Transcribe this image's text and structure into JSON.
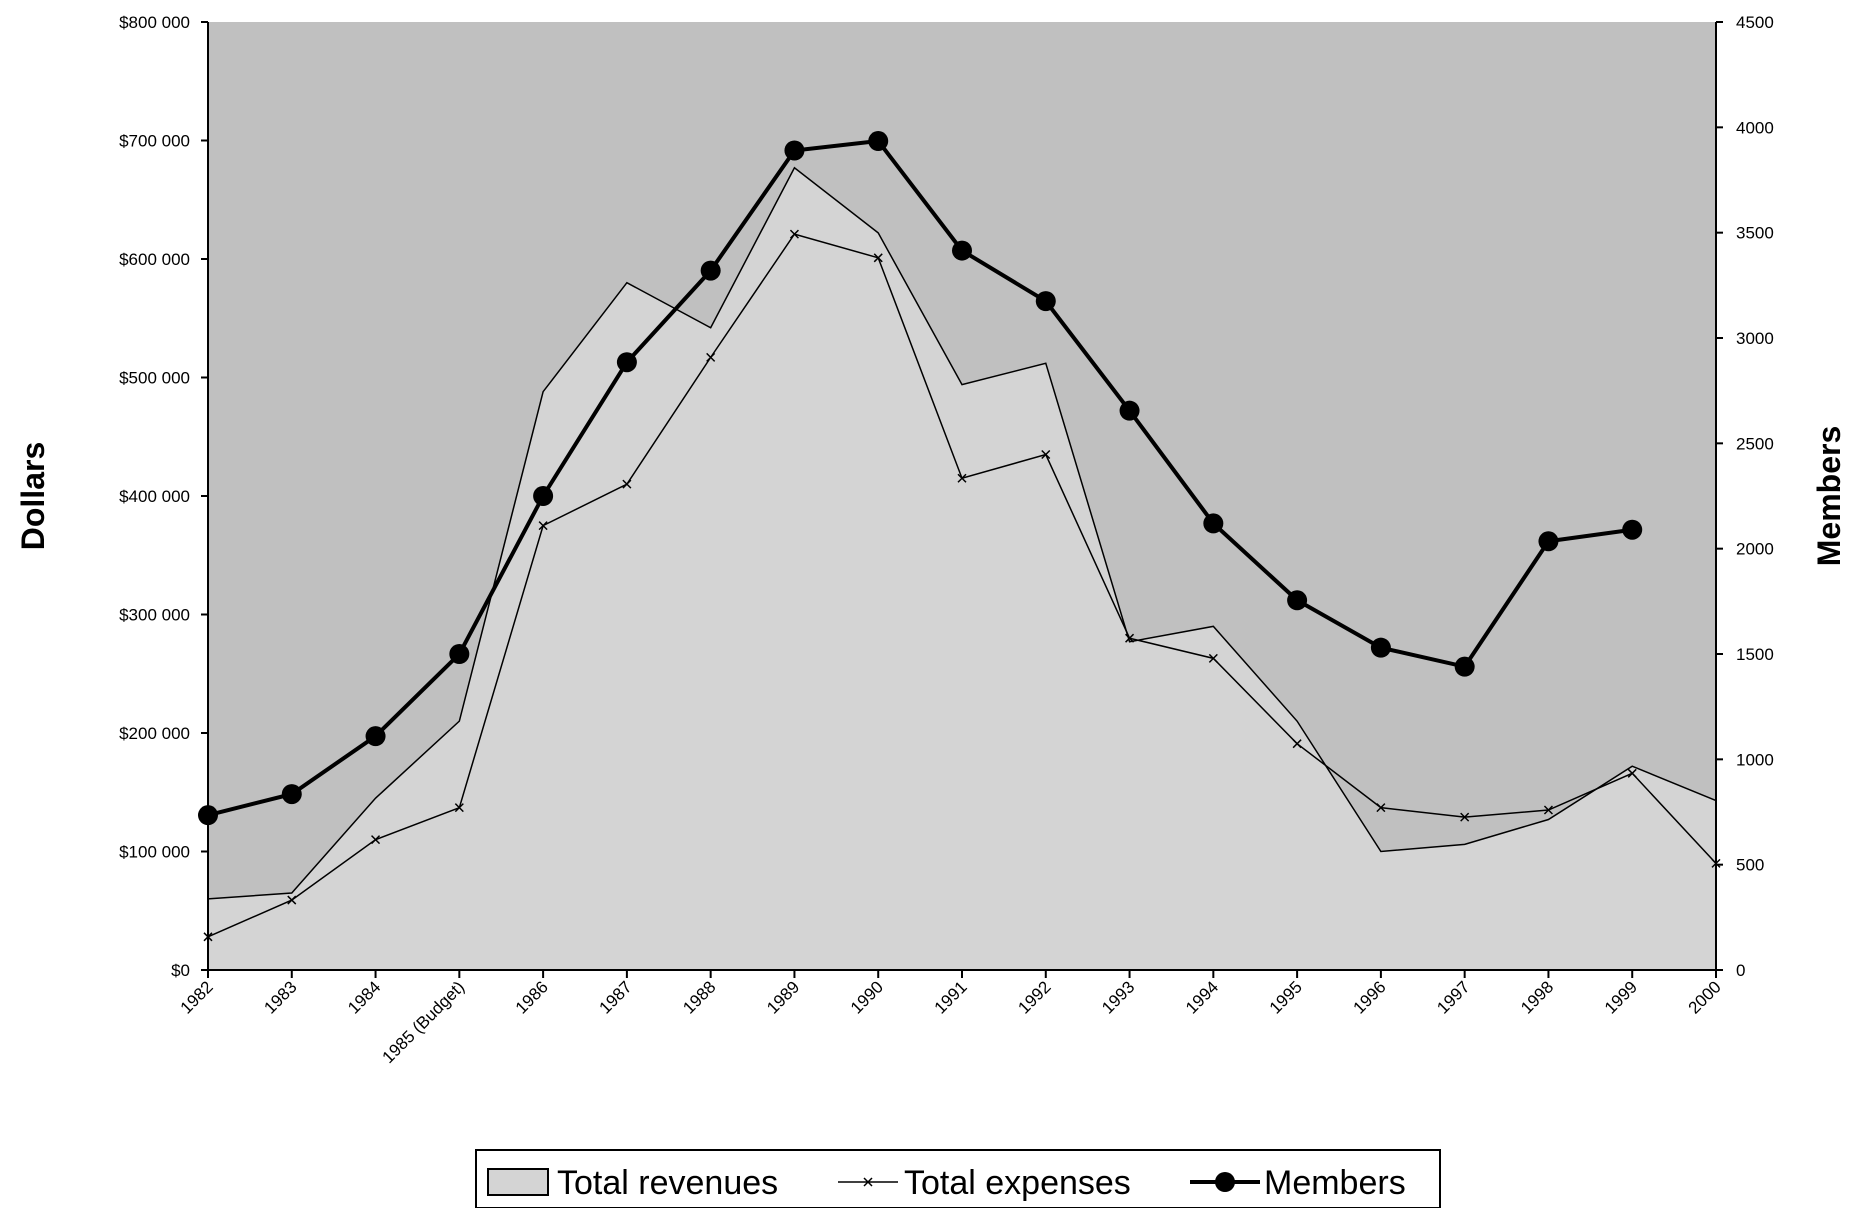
{
  "chart_data": {
    "type": "area",
    "title": "",
    "ylabel": "Dollars",
    "y2label": "Members",
    "categories": [
      "1982",
      "1983",
      "1984",
      "1985 (Budget)",
      "1986",
      "1987",
      "1988",
      "1989",
      "1990",
      "1991",
      "1992",
      "1993",
      "1994",
      "1995",
      "1996",
      "1997",
      "1998",
      "1999",
      "2000"
    ],
    "ylim": [
      0,
      800000
    ],
    "y2lim": [
      0,
      4500
    ],
    "y_ticks": [
      "$0",
      "$100 000",
      "$200 000",
      "$300 000",
      "$400 000",
      "$500 000",
      "$600 000",
      "$700 000",
      "$800 000"
    ],
    "y2_ticks": [
      "0",
      "500",
      "1000",
      "1500",
      "2000",
      "2500",
      "3000",
      "3500",
      "4000",
      "4500"
    ],
    "series": [
      {
        "name": "Total revenues",
        "type": "area",
        "axis": "left",
        "values": [
          60000,
          65000,
          145000,
          210000,
          488000,
          580000,
          542000,
          677000,
          622000,
          494000,
          512000,
          277000,
          290000,
          210000,
          100000,
          106000,
          127000,
          172000,
          143000
        ]
      },
      {
        "name": "Total expenses",
        "type": "line",
        "axis": "left",
        "values": [
          28000,
          59000,
          110000,
          137000,
          375000,
          410000,
          517000,
          621000,
          601000,
          415000,
          435000,
          280000,
          263000,
          191000,
          137000,
          129000,
          135000,
          166000,
          90000
        ]
      },
      {
        "name": "Members",
        "type": "line",
        "axis": "right",
        "values": [
          735,
          835,
          1110,
          1500,
          2250,
          2885,
          3320,
          3890,
          3935,
          3415,
          3175,
          2655,
          2120,
          1755,
          1530,
          1440,
          2035,
          2090,
          null
        ]
      }
    ],
    "legend_position": "bottom",
    "grid": false
  },
  "colors": {
    "plot_background": "#c0c0c0",
    "revenue_fill": "#d4d4d4",
    "line": "#000000"
  }
}
